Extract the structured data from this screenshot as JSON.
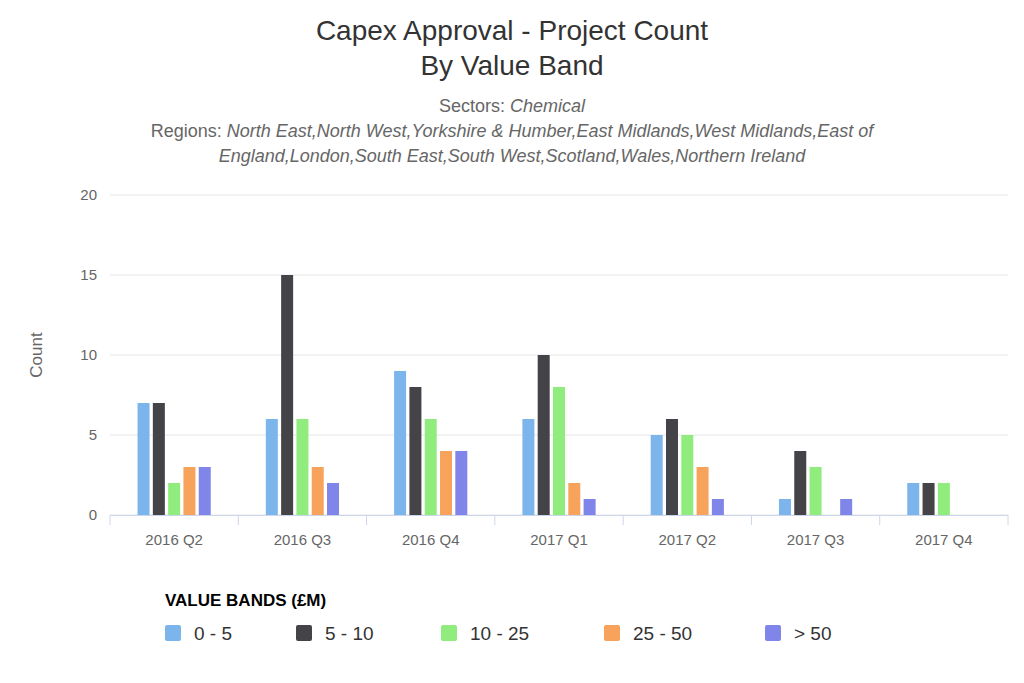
{
  "chart_data": {
    "type": "bar",
    "title": [
      "Capex Approval - Project Count",
      "By Value Band"
    ],
    "subtitle": [
      "Sectors: Chemical",
      "Regions: North East,North West,Yorkshire & Humber,East Midlands,West Midlands,East of England,London,South East,South West,Scotland,Wales,Northern Ireland"
    ],
    "y_label": "Count",
    "legend_title": "VALUE BANDS (£M)",
    "categories": [
      "2016 Q2",
      "2016 Q3",
      "2016 Q4",
      "2017 Q1",
      "2017 Q2",
      "2017 Q3",
      "2017 Q4"
    ],
    "series": [
      {
        "name": "0 - 5",
        "color": "#7cb5ec",
        "values": [
          7,
          6,
          9,
          6,
          5,
          1,
          2
        ]
      },
      {
        "name": "5 - 10",
        "color": "#434348",
        "values": [
          7,
          15,
          8,
          10,
          6,
          4,
          2
        ]
      },
      {
        "name": "10 - 25",
        "color": "#90ed7d",
        "values": [
          2,
          6,
          6,
          8,
          5,
          3,
          2
        ]
      },
      {
        "name": "25 - 50",
        "color": "#f7a35c",
        "values": [
          3,
          3,
          4,
          2,
          3,
          0,
          0
        ]
      },
      {
        "name": "> 50",
        "color": "#8085e9",
        "values": [
          3,
          2,
          4,
          1,
          1,
          1,
          0
        ]
      }
    ],
    "ylim": [
      0,
      20
    ],
    "yticks": [
      0,
      5,
      10,
      15,
      20
    ],
    "grid": true,
    "legend": "bottom"
  }
}
